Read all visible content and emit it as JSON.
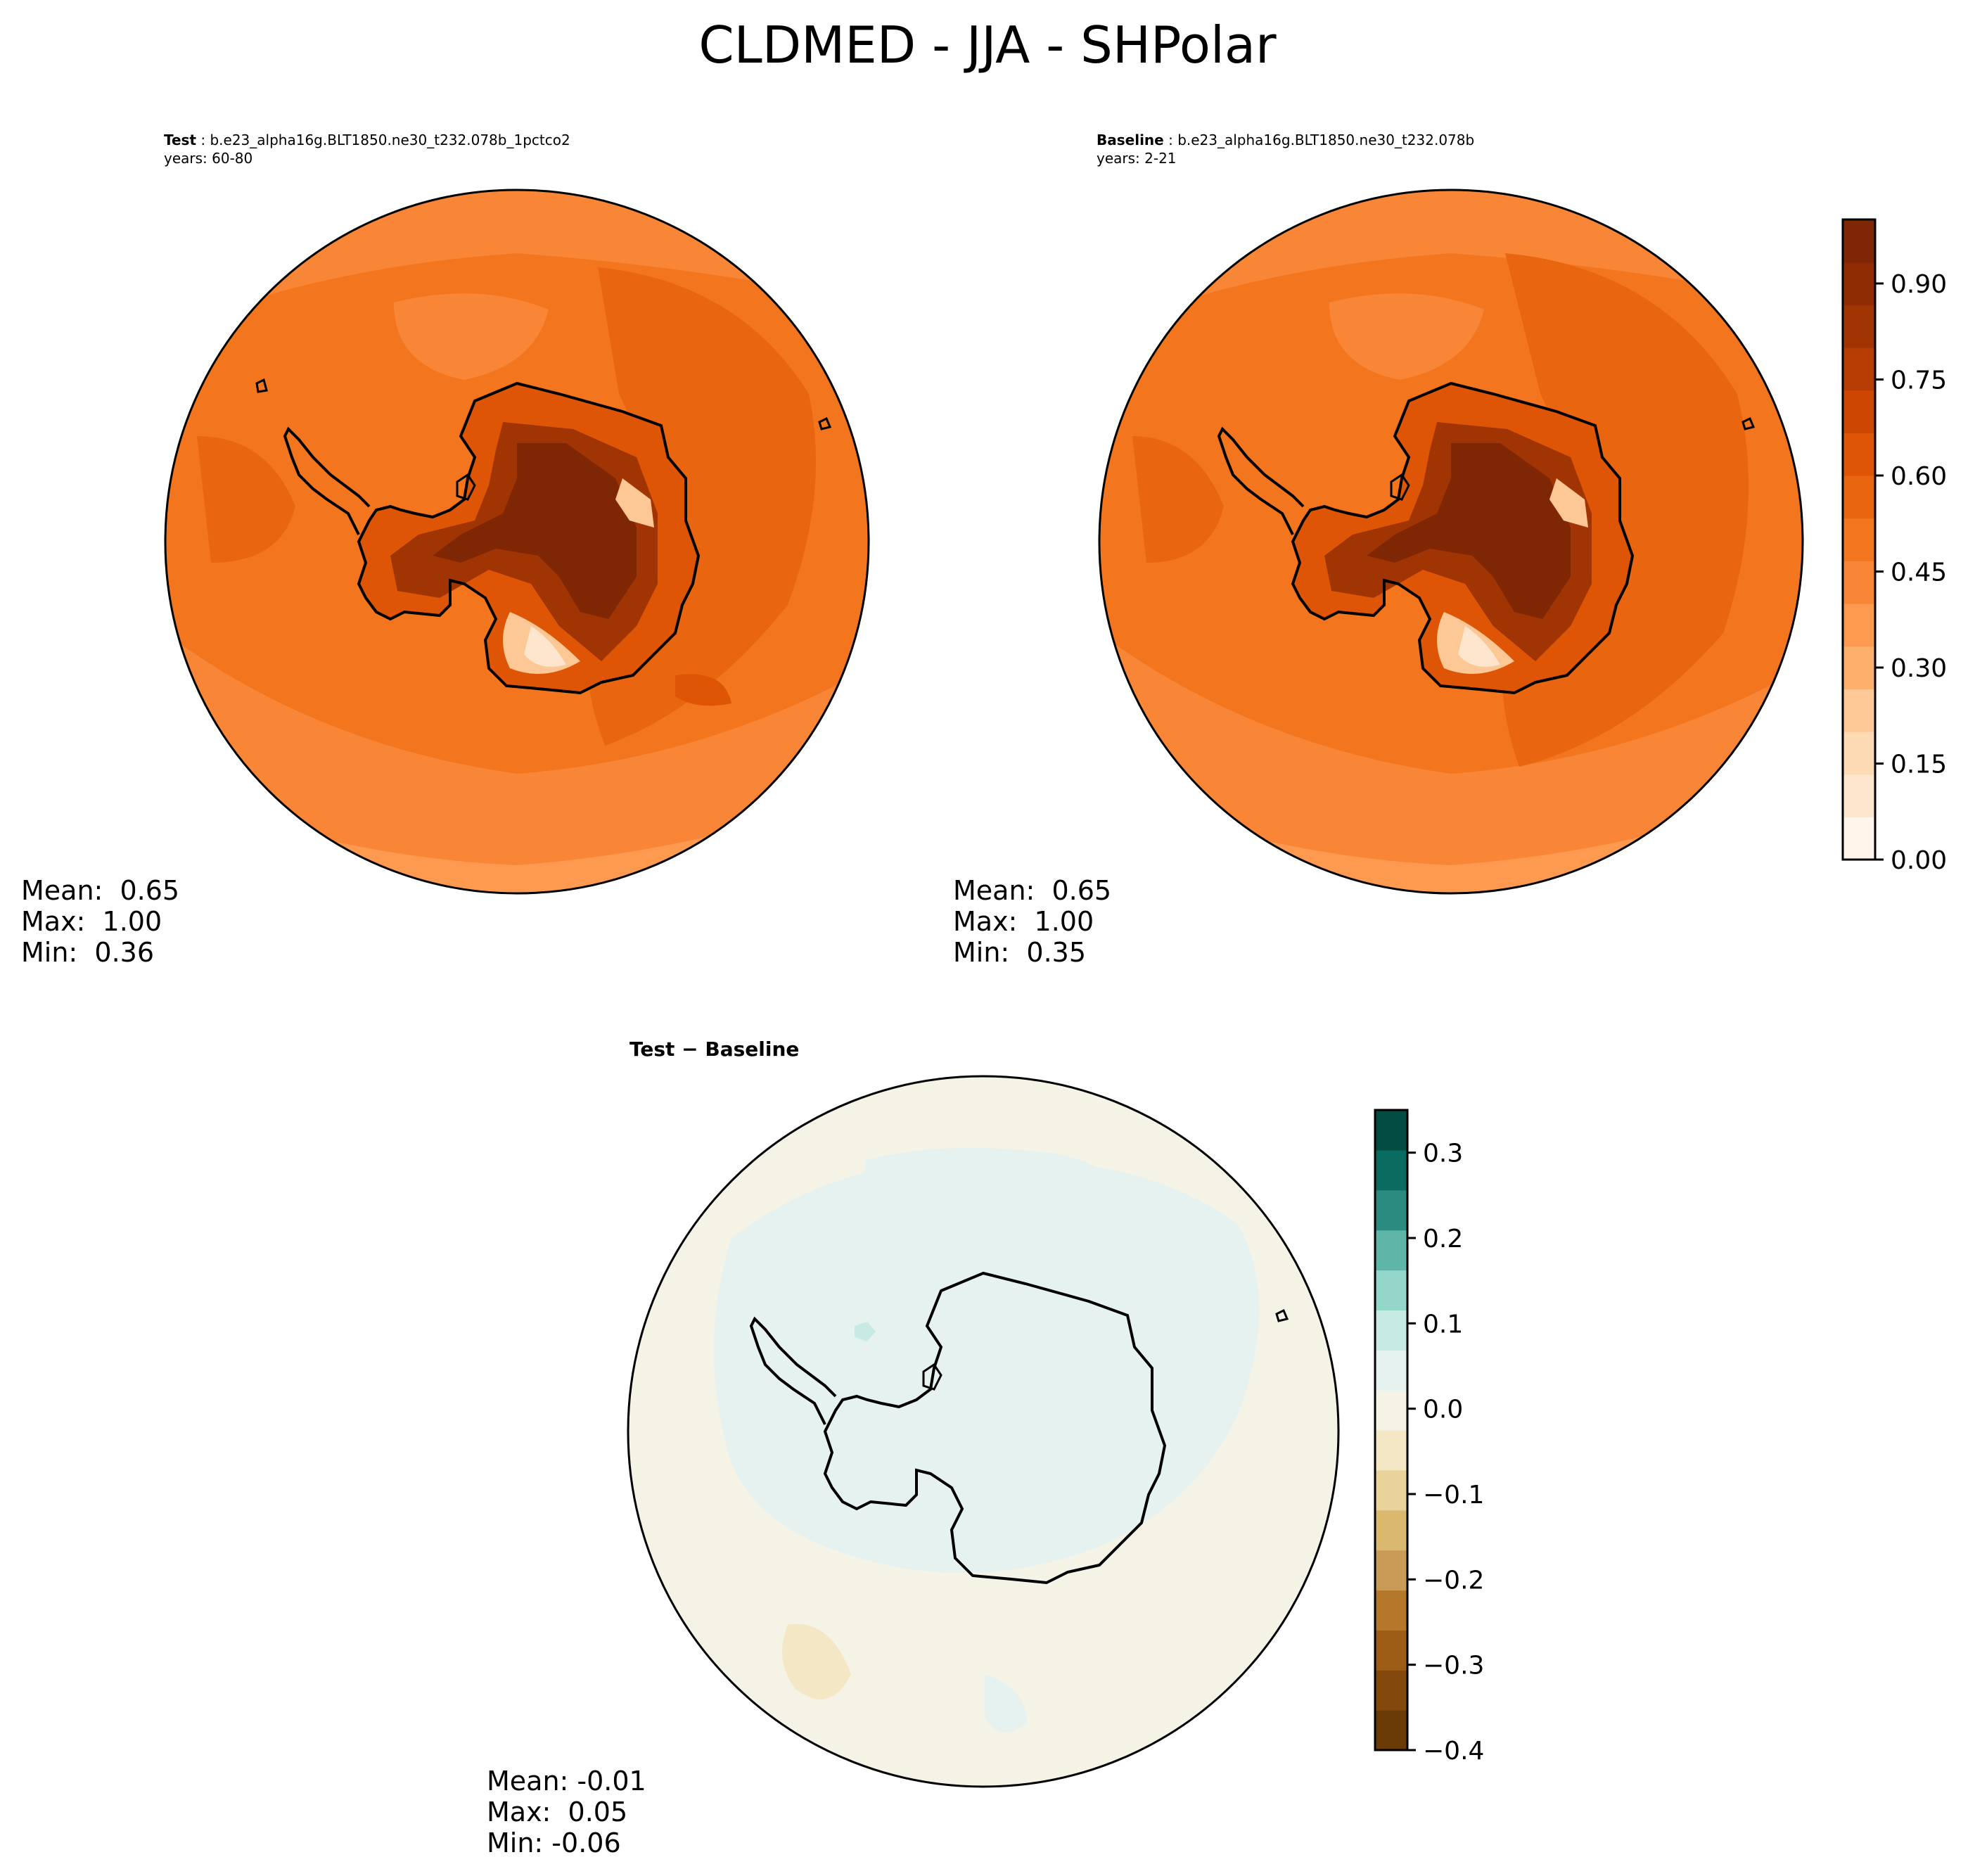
{
  "figure": {
    "title": "CLDMED - JJA - SHPolar"
  },
  "panels": [
    {
      "id": "test",
      "label": "Test",
      "case_name": "b.e23_alpha16g.BLT1850.ne30_t232.078b_1pctco2",
      "years": "years: 60-80",
      "stats": {
        "mean": "Mean:  0.65",
        "max": "Max:  1.00",
        "min": "Min:  0.36"
      }
    },
    {
      "id": "baseline",
      "label": "Baseline",
      "case_name": "b.e23_alpha16g.BLT1850.ne30_t232.078b",
      "years": "years: 2-21",
      "stats": {
        "mean": "Mean:  0.65",
        "max": "Max:  1.00",
        "min": "Min:  0.35"
      }
    },
    {
      "id": "difference",
      "label": "Test − Baseline",
      "stats": {
        "mean": "Mean: -0.01",
        "max": "Max:  0.05",
        "min": "Min: -0.06"
      }
    }
  ],
  "colorbars": {
    "main": {
      "range": [
        0.0,
        1.0
      ],
      "tick_labels": [
        "0.00",
        "0.15",
        "0.30",
        "0.45",
        "0.60",
        "0.75",
        "0.90"
      ],
      "tick_values": [
        0.0,
        0.15,
        0.3,
        0.45,
        0.6,
        0.75,
        0.9
      ],
      "colors": [
        "#fff5eb",
        "#fee6ce",
        "#fdd9b4",
        "#fdc895",
        "#fdae6b",
        "#fd9a4f",
        "#f98636",
        "#f3761f",
        "#ea6510",
        "#de5506",
        "#cd4702",
        "#b63c02",
        "#a13403",
        "#8f2c03",
        "#7f2704"
      ]
    },
    "difference": {
      "range": [
        -0.4,
        0.35
      ],
      "tick_labels": [
        "−0.4",
        "−0.3",
        "−0.2",
        "−0.1",
        "0.0",
        "0.1",
        "0.2",
        "0.3"
      ],
      "tick_values": [
        -0.4,
        -0.3,
        -0.2,
        -0.1,
        0.0,
        0.1,
        0.2,
        0.3
      ],
      "colors": [
        "#6b3b07",
        "#83480b",
        "#9d5d17",
        "#b5782b",
        "#c99b56",
        "#dab96f",
        "#e9d39a",
        "#f4e7c5",
        "#f5f2e6",
        "#e5f2ef",
        "#c7eae5",
        "#93d6ca",
        "#5eb5a8",
        "#2c8b80",
        "#0a6b61",
        "#034c42"
      ]
    }
  },
  "map": {
    "projection": "south-polar-stereographic",
    "ocean_color_main": "#f07a28",
    "ocean_color_diff": "#f5f2e6",
    "coastline_color": "#000000"
  }
}
